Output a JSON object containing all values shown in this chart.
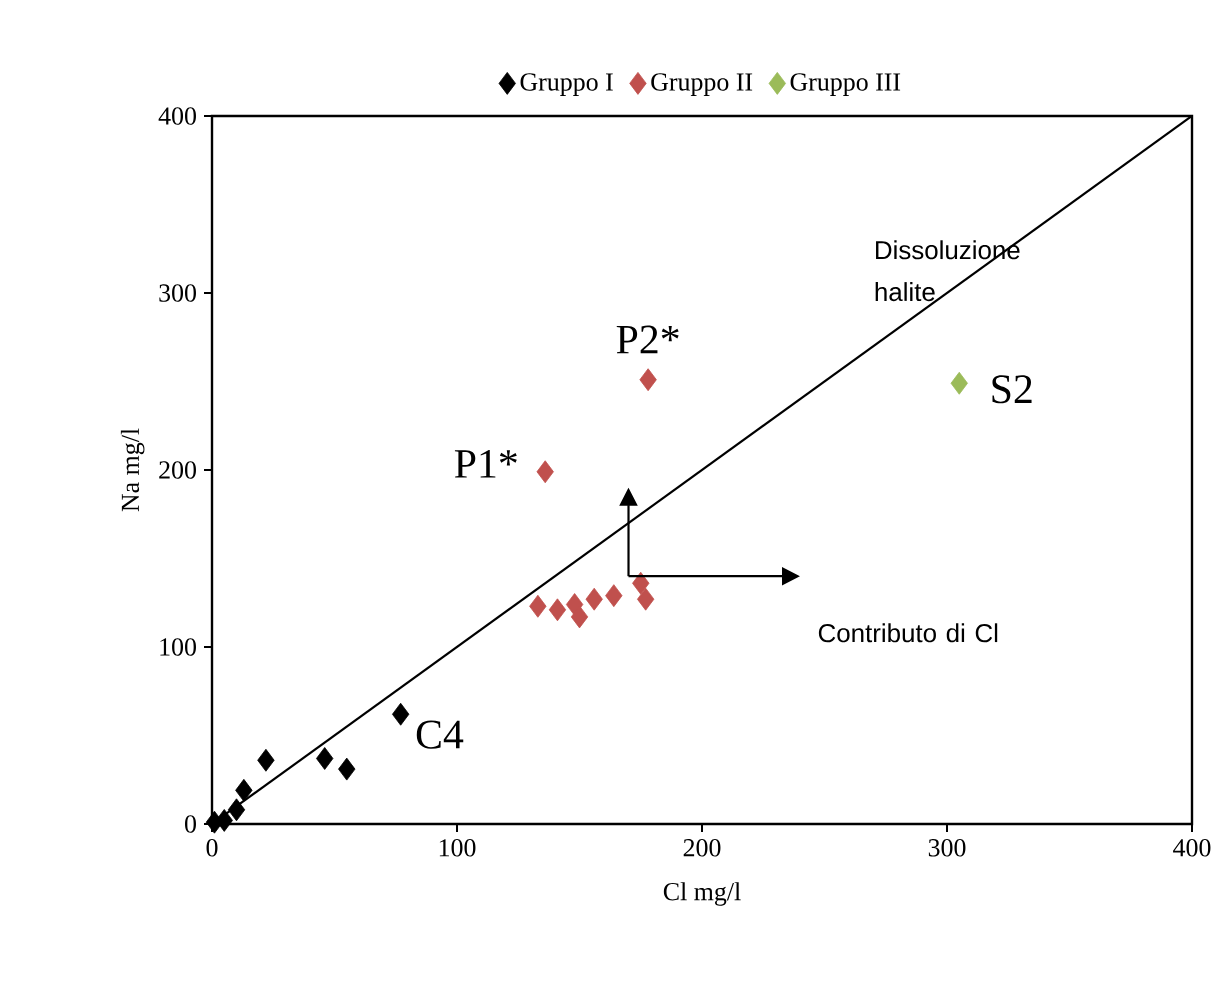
{
  "chart_data": {
    "type": "scatter",
    "xlabel": "Cl mg/l",
    "ylabel": "Na mg/l",
    "xlim": [
      0,
      400
    ],
    "ylim": [
      0,
      400
    ],
    "xticks": [
      0,
      100,
      200,
      300,
      400
    ],
    "yticks": [
      0,
      100,
      200,
      300,
      400
    ],
    "grid": false,
    "legend": "top",
    "marker": "diamond",
    "series": [
      {
        "name": "Gruppo I",
        "color": "#000000",
        "x": [
          1,
          5,
          10,
          13,
          22,
          46,
          55,
          77
        ],
        "values": [
          1,
          2,
          8,
          19,
          36,
          37,
          31,
          62
        ]
      },
      {
        "name": "Gruppo II",
        "color": "#c0504d",
        "x": [
          136,
          178,
          133,
          141,
          148,
          150,
          156,
          164,
          175,
          177
        ],
        "values": [
          199,
          251,
          123,
          121,
          124,
          117,
          127,
          129,
          136,
          127
        ]
      },
      {
        "name": "Gruppo III",
        "color": "#9bbb59",
        "x": [
          305
        ],
        "values": [
          249
        ]
      },
      {
        "type": "line",
        "marker": "none",
        "color": "#000000",
        "x": [
          0,
          400
        ],
        "values": [
          0,
          400
        ]
      }
    ],
    "annotations": [
      {
        "text": "P1*",
        "x": 136,
        "y": 199
      },
      {
        "text": "P2*",
        "x": 178,
        "y": 251
      },
      {
        "text": "S2",
        "x": 305,
        "y": 249
      },
      {
        "text": "C4",
        "x": 77,
        "y": 62
      },
      "Dissoluzione halite",
      "Contributo di Cl"
    ]
  }
}
